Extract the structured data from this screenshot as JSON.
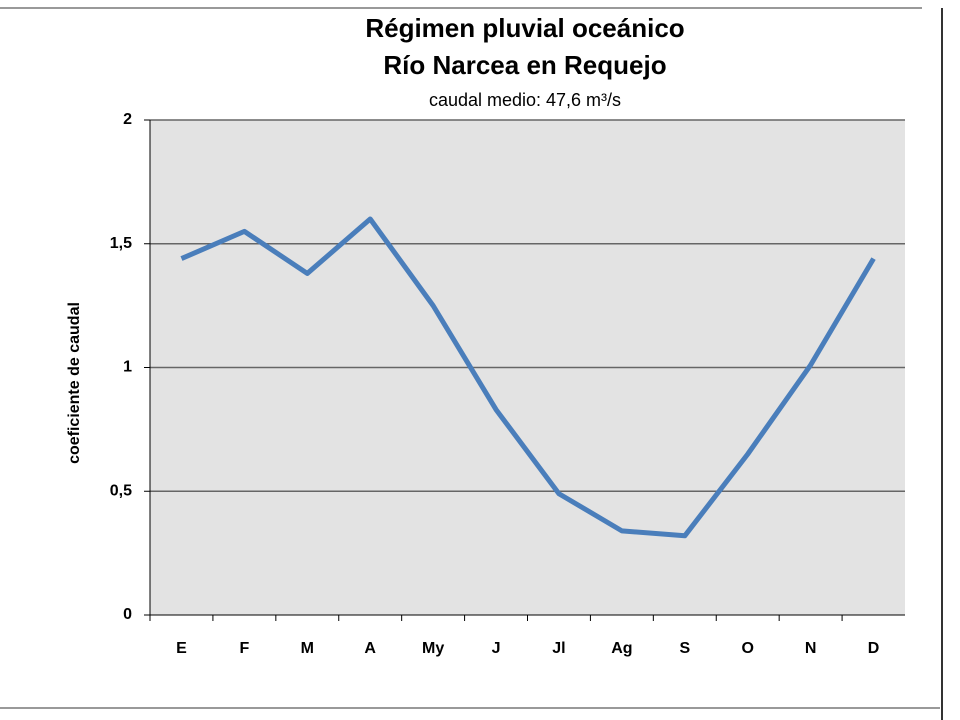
{
  "chart_data": {
    "type": "line",
    "title": "Régimen pluvial oceánico",
    "subtitle_line": "Río Narcea en Requejo",
    "subtitle": "caudal medio: 47,6 m³/s",
    "ylabel": "coeficiente de caudal",
    "categories": [
      "E",
      "F",
      "M",
      "A",
      "My",
      "J",
      "Jl",
      "Ag",
      "S",
      "O",
      "N",
      "D"
    ],
    "series": [
      {
        "name": "coeficiente de caudal",
        "color": "#4a7ebb",
        "values": [
          1.44,
          1.55,
          1.38,
          1.6,
          1.25,
          0.83,
          0.49,
          0.34,
          0.32,
          0.65,
          1.01,
          1.44
        ]
      }
    ],
    "ylim": [
      0,
      2
    ],
    "yticks": [
      0,
      {
        "value": 0.5,
        "label": "0,5"
      },
      1,
      {
        "value": 1.5,
        "label": "1,5"
      },
      2
    ],
    "grid": true
  }
}
